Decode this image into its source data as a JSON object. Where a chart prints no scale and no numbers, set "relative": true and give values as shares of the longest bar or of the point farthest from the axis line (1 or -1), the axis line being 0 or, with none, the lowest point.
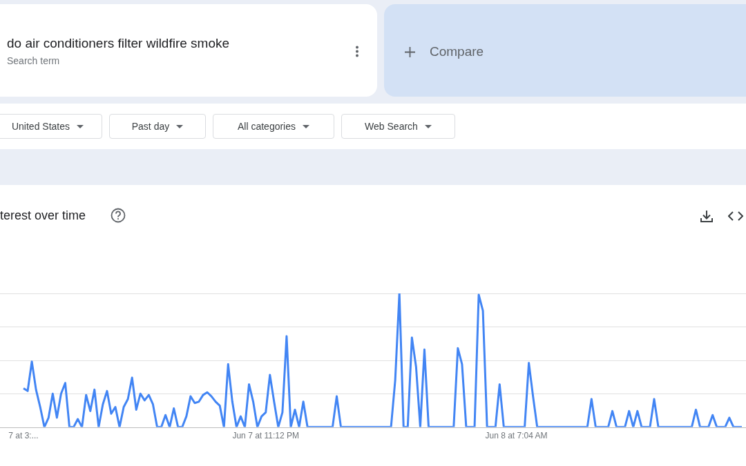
{
  "chart_data": {
    "type": "line",
    "title": "terest over time",
    "annotations": [
      "do air conditioners filter wildfire smoke",
      "Search term",
      "Compare",
      "United States",
      "Past day",
      "All categories",
      "Web Search"
    ],
    "relative": true,
    "grid": "y",
    "legend": false,
    "marker": "none",
    "categories": [
      "7 at 3:...",
      null,
      null,
      null,
      null,
      null,
      null,
      null,
      null,
      null,
      null,
      null,
      null,
      null,
      null,
      null,
      null,
      null,
      null,
      null,
      null,
      null,
      null,
      null,
      null,
      null,
      null,
      null,
      null,
      null,
      null,
      null,
      null,
      null,
      null,
      null,
      null,
      null,
      null,
      null,
      null,
      null,
      null,
      null,
      null,
      null,
      null,
      null,
      null,
      null,
      null,
      null,
      null,
      null,
      null,
      null,
      null,
      null,
      "Jun 7 at 11:12 PM",
      null,
      null,
      null,
      null,
      null,
      null,
      null,
      null,
      null,
      null,
      null,
      null,
      null,
      null,
      null,
      null,
      null,
      null,
      null,
      null,
      null,
      null,
      null,
      null,
      null,
      null,
      null,
      null,
      null,
      null,
      null,
      null,
      null,
      null,
      null,
      null,
      null,
      null,
      null,
      null,
      null,
      null,
      null,
      null,
      null,
      null,
      null,
      null,
      null,
      null,
      null,
      null,
      null,
      null,
      null,
      null,
      null,
      null,
      null,
      "Jun 8 at 7:04 AM",
      null,
      null,
      null,
      null,
      null,
      null,
      null,
      null,
      null,
      null,
      null,
      null,
      null,
      null,
      null,
      null,
      null,
      null,
      null,
      null,
      null,
      null,
      null,
      null,
      null,
      null,
      null,
      null,
      null,
      null,
      null,
      null,
      null,
      null,
      null,
      null,
      null,
      null,
      null,
      null,
      null,
      null,
      null,
      null,
      null,
      null,
      null,
      null,
      null,
      null,
      null,
      null,
      null,
      null
    ],
    "series": [
      {
        "color": "#4285f4",
        "values": [
          0.29,
          0.27,
          0.49,
          0.28,
          0.15,
          0,
          0.07,
          0.25,
          0.07,
          0.25,
          0.33,
          0,
          0,
          0.06,
          0,
          0.24,
          0.12,
          0.28,
          0,
          0.17,
          0.27,
          0.1,
          0.15,
          0,
          0.15,
          0.21,
          0.37,
          0.13,
          0.25,
          0.2,
          0.24,
          0.17,
          0,
          0,
          0.09,
          0,
          0.14,
          0,
          0,
          0.08,
          0.23,
          0.18,
          0.19,
          0.24,
          0.26,
          0.23,
          0.19,
          0.16,
          0,
          0.47,
          0.19,
          0,
          0.08,
          0,
          0.32,
          0.19,
          0,
          0.08,
          0.11,
          0.39,
          0.19,
          0,
          0.11,
          0.68,
          0,
          0.13,
          0,
          0.19,
          0,
          0,
          0,
          0,
          0,
          0,
          0,
          0.23,
          0,
          0,
          0,
          0,
          0,
          0,
          0,
          0,
          0,
          0,
          0,
          0,
          0,
          0.35,
          1,
          0,
          0,
          0.67,
          0.45,
          0,
          0.58,
          0,
          0,
          0,
          0,
          0,
          0,
          0,
          0.59,
          0.47,
          0,
          0,
          0,
          0.99,
          0.87,
          0,
          0,
          0,
          0.32,
          0,
          0,
          0,
          0,
          0,
          0,
          0.48,
          0.23,
          0,
          0,
          0,
          0,
          0,
          0,
          0,
          0,
          0,
          0,
          0,
          0,
          0,
          0.21,
          0,
          0,
          0,
          0,
          0.12,
          0,
          0,
          0,
          0.12,
          0,
          0.12,
          0,
          0,
          0,
          0.21,
          0,
          0,
          0,
          0,
          0,
          0,
          0,
          0,
          0,
          0.13,
          0,
          0,
          0,
          0.09,
          0,
          0,
          0,
          0.07,
          0,
          0,
          0
        ]
      }
    ]
  }
}
